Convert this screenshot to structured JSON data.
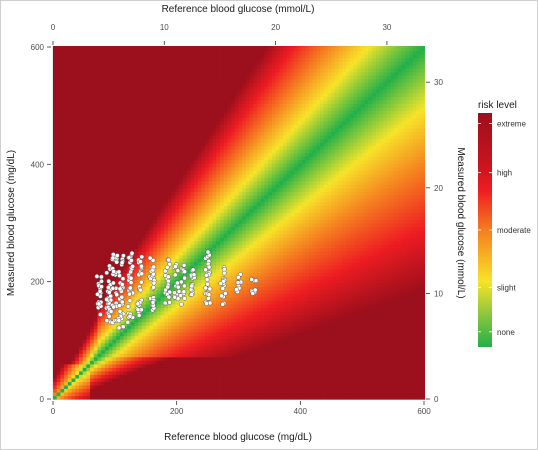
{
  "chart_data": {
    "type": "heatmap",
    "xlabel_bottom": "Reference blood glucose (mg/dL)",
    "xlabel_top": "Reference blood glucose (mmol/L)",
    "ylabel_left": "Measured blood glucose (mg/dL)",
    "ylabel_right": "Measured blood glucose (mmol/L)",
    "xlim": [
      0,
      600
    ],
    "ylim": [
      0,
      600
    ],
    "x_ticks_bottom": [
      0,
      200,
      400,
      600
    ],
    "y_ticks_left": [
      0,
      200,
      400,
      600
    ],
    "x_ticks_top_mmol": [
      0,
      10,
      20,
      30
    ],
    "y_ticks_right_mmol": [
      0,
      10,
      20,
      30
    ],
    "legend": {
      "title": "risk level",
      "labels": [
        "extreme",
        "high",
        "moderate",
        "slight",
        "none"
      ],
      "colors": [
        "#9c0f1c",
        "#ee1c22",
        "#f57e20",
        "#f7e429",
        "#22b04a"
      ]
    },
    "panel_background": "#ebebeb",
    "overlay_points": {
      "description_visible": "white circles",
      "clusters": [
        {
          "x": 75,
          "y_min": 140,
          "y_max": 215
        },
        {
          "x": 90,
          "y_min": 125,
          "y_max": 235
        },
        {
          "x": 100,
          "y_min": 130,
          "y_max": 250
        },
        {
          "x": 110,
          "y_min": 120,
          "y_max": 245
        },
        {
          "x": 125,
          "y_min": 130,
          "y_max": 250
        },
        {
          "x": 140,
          "y_min": 140,
          "y_max": 245
        },
        {
          "x": 160,
          "y_min": 150,
          "y_max": 245
        },
        {
          "x": 185,
          "y_min": 160,
          "y_max": 240
        },
        {
          "x": 200,
          "y_min": 170,
          "y_max": 235
        },
        {
          "x": 210,
          "y_min": 160,
          "y_max": 230
        },
        {
          "x": 225,
          "y_min": 170,
          "y_max": 235
        },
        {
          "x": 250,
          "y_min": 160,
          "y_max": 255
        },
        {
          "x": 275,
          "y_min": 160,
          "y_max": 225
        },
        {
          "x": 300,
          "y_min": 170,
          "y_max": 215
        },
        {
          "x": 325,
          "y_min": 175,
          "y_max": 210
        }
      ]
    }
  }
}
